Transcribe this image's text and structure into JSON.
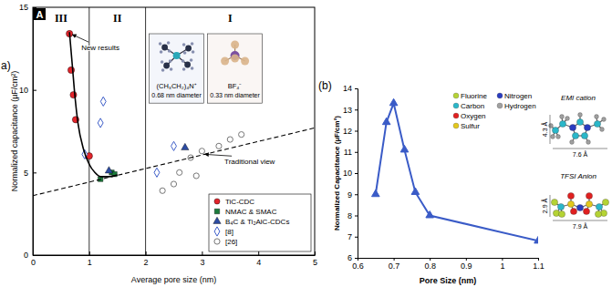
{
  "chart_data": [
    {
      "type": "scatter",
      "title": "A",
      "panel_label": "a)",
      "x_label": "Average pore size (nm)",
      "y_label": "Normalized capacitance (µF/cm²)",
      "xlim": [
        0,
        5
      ],
      "xticks": [
        0,
        1,
        2,
        3,
        4,
        5
      ],
      "ylim": [
        0,
        15
      ],
      "yticks": [
        0,
        5,
        10,
        15
      ],
      "legend": "lower right",
      "regions": [
        {
          "label": "III",
          "from": 0,
          "to": 1
        },
        {
          "label": "II",
          "from": 1,
          "to": 2
        },
        {
          "label": "I",
          "from": 2,
          "to": 5
        }
      ],
      "insets": [
        {
          "label": "(CH₃CH₂)₄N⁺",
          "caption": "0.68 nm diameter"
        },
        {
          "label": "BF₄⁻",
          "caption": "0.33 nm diameter"
        }
      ],
      "annotations": [
        {
          "text": "New results",
          "x": 0.86,
          "y": 12.4,
          "arrow_to": [
            0.7,
            13.35
          ]
        },
        {
          "text": "Traditional view",
          "x": 3.4,
          "y": 5.5,
          "arrow_to": [
            3.05,
            6.1
          ]
        }
      ],
      "series": [
        {
          "name": "TiC-CDC",
          "color": "#e3242b",
          "marker": "circle",
          "x": [
            0.65,
            0.68,
            0.72,
            0.76,
            1.0
          ],
          "values": [
            13.4,
            11.2,
            9.7,
            8.2,
            6.0
          ]
        },
        {
          "name": "NMAC & SMAC",
          "color": "#1b7b3b",
          "marker": "square",
          "x": [
            1.2,
            1.4,
            1.45
          ],
          "values": [
            4.6,
            5.0,
            4.9
          ]
        },
        {
          "name": "B₄C & Ti₂AlC-CDCs",
          "color": "#2c4ca3",
          "marker": "triangle",
          "x": [
            1.35,
            2.7
          ],
          "values": [
            5.1,
            6.5
          ]
        },
        {
          "name": "[8]",
          "color": "#3f5fc9",
          "marker": "diamond-open",
          "x": [
            0.92,
            1.2,
            1.25,
            2.2,
            2.5
          ],
          "values": [
            6.1,
            8.0,
            9.3,
            5.0,
            6.6
          ]
        },
        {
          "name": "[26]",
          "color": "#777777",
          "marker": "circle-open",
          "x": [
            2.3,
            2.5,
            2.6,
            2.8,
            2.9,
            3.0,
            3.3,
            3.5,
            3.7
          ],
          "values": [
            3.9,
            4.3,
            5.0,
            5.9,
            4.8,
            6.3,
            6.6,
            7.0,
            7.3
          ]
        },
        {
          "type": "line",
          "color": "#000000",
          "line_style": "solid",
          "x": [
            0.65,
            0.7,
            0.75,
            0.8,
            0.9,
            1.0,
            1.1,
            1.2,
            1.35,
            1.5
          ],
          "values": [
            13.5,
            11.5,
            9.5,
            8.0,
            6.4,
            5.5,
            5.0,
            4.75,
            4.75,
            4.85
          ]
        },
        {
          "type": "line",
          "color": "#000000",
          "line_style": "dashed",
          "x": [
            0,
            5
          ],
          "values": [
            3.6,
            7.7
          ]
        }
      ]
    },
    {
      "type": "line",
      "panel_label": "(b)",
      "x_label": "Pore Size (nm)",
      "y_label": "Normalized Capacitance (µF/cm²)",
      "xlim": [
        0.6,
        1.1
      ],
      "xticks": [
        0.6,
        0.7,
        0.8,
        0.9,
        1,
        1.1
      ],
      "ylim": [
        6,
        14
      ],
      "yticks": [
        6,
        7,
        8,
        9,
        10,
        11,
        12,
        13,
        14
      ],
      "x": [
        0.65,
        0.68,
        0.7,
        0.73,
        0.76,
        0.8,
        1.1
      ],
      "series": [
        {
          "color": "#3a5bc7",
          "marker": "triangle",
          "values": [
            9.0,
            12.4,
            13.3,
            11.1,
            9.1,
            8.0,
            6.8
          ]
        }
      ],
      "atoms": [
        {
          "name": "Fluorine",
          "color": "#b5d334"
        },
        {
          "name": "Carbon",
          "color": "#2ab7c9"
        },
        {
          "name": "Oxygen",
          "color": "#e02020"
        },
        {
          "name": "Sulfur",
          "color": "#e3c81c"
        },
        {
          "name": "Nitrogen",
          "color": "#2a3cc0"
        },
        {
          "name": "Hydrogen",
          "color": "#a0a0a0"
        }
      ],
      "molecules": [
        {
          "name": "EMI cation",
          "dimensions": [
            "4.3 Å",
            "7.6 Å"
          ]
        },
        {
          "name": "TFSI Anion",
          "dimensions": [
            "2.9 Å",
            "7.9 Å"
          ]
        }
      ]
    }
  ]
}
